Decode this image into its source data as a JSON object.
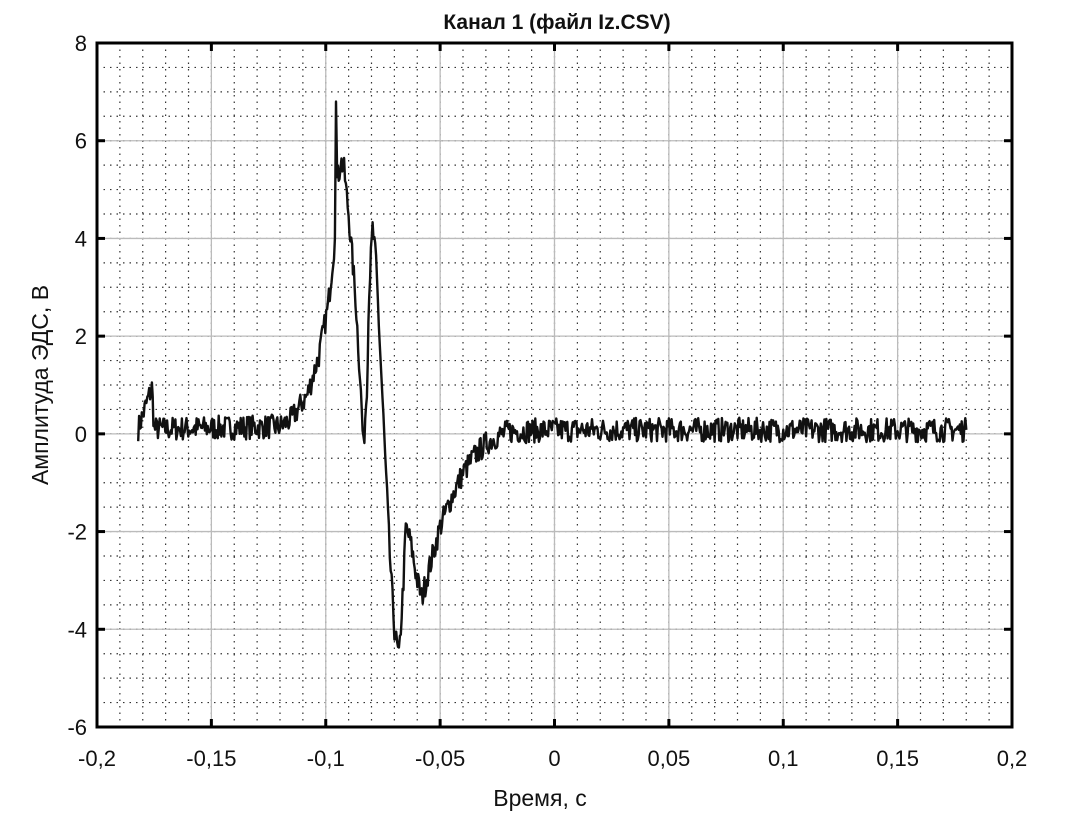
{
  "chart_data": {
    "type": "line",
    "title": "Канал 1  (файл Iz.CSV)",
    "xlabel": "Время, с",
    "ylabel": "Амплитуда ЭДС, В",
    "xlim": [
      -0.2,
      0.2
    ],
    "ylim": [
      -6,
      8
    ],
    "x_ticks": [
      -0.2,
      -0.15,
      -0.1,
      -0.05,
      0,
      0.05,
      0.1,
      0.15,
      0.2
    ],
    "x_tick_labels": [
      "-0,2",
      "-0,15",
      "-0,1",
      "-0,05",
      "0",
      "0,05",
      "0,1",
      "0,15",
      "0,2"
    ],
    "y_ticks": [
      -6,
      -4,
      -2,
      0,
      2,
      4,
      6,
      8
    ],
    "y_tick_labels": [
      "-6",
      "-4",
      "-2",
      "0",
      "2",
      "4",
      "6",
      "8"
    ],
    "grid": true,
    "minor_grid": {
      "x_step": 0.01,
      "y_step": 0.5
    },
    "line_color": "#111111",
    "series": [
      {
        "x": [
          -0.182,
          -0.176,
          -0.175,
          -0.15,
          -0.12,
          -0.115,
          -0.108,
          -0.103,
          -0.099,
          -0.096,
          -0.0955,
          -0.095,
          -0.094,
          -0.0935,
          -0.092,
          -0.09,
          -0.087,
          -0.085,
          -0.0835,
          -0.082,
          -0.081,
          -0.0795,
          -0.078,
          -0.076,
          -0.074,
          -0.072,
          -0.07,
          -0.068,
          -0.066,
          -0.065,
          -0.063,
          -0.06,
          -0.058,
          -0.055,
          -0.05,
          -0.045,
          -0.04,
          -0.035,
          -0.03,
          -0.025,
          -0.02,
          0,
          0.05,
          0.1,
          0.15,
          0.18
        ],
        "y": [
          0.1,
          0.95,
          0.1,
          0.12,
          0.15,
          0.3,
          0.8,
          1.6,
          2.6,
          4.0,
          6.8,
          5.2,
          5.4,
          5.6,
          5.4,
          4.5,
          2.8,
          1.2,
          -0.3,
          1.0,
          3.0,
          4.2,
          3.5,
          1.5,
          -0.5,
          -2.5,
          -4.0,
          -4.6,
          -3.0,
          -1.9,
          -2.2,
          -3.0,
          -3.35,
          -2.8,
          -1.9,
          -1.3,
          -0.8,
          -0.45,
          -0.2,
          -0.05,
          0.05,
          0.08,
          0.08,
          0.08,
          0.08,
          0.08
        ]
      }
    ]
  }
}
